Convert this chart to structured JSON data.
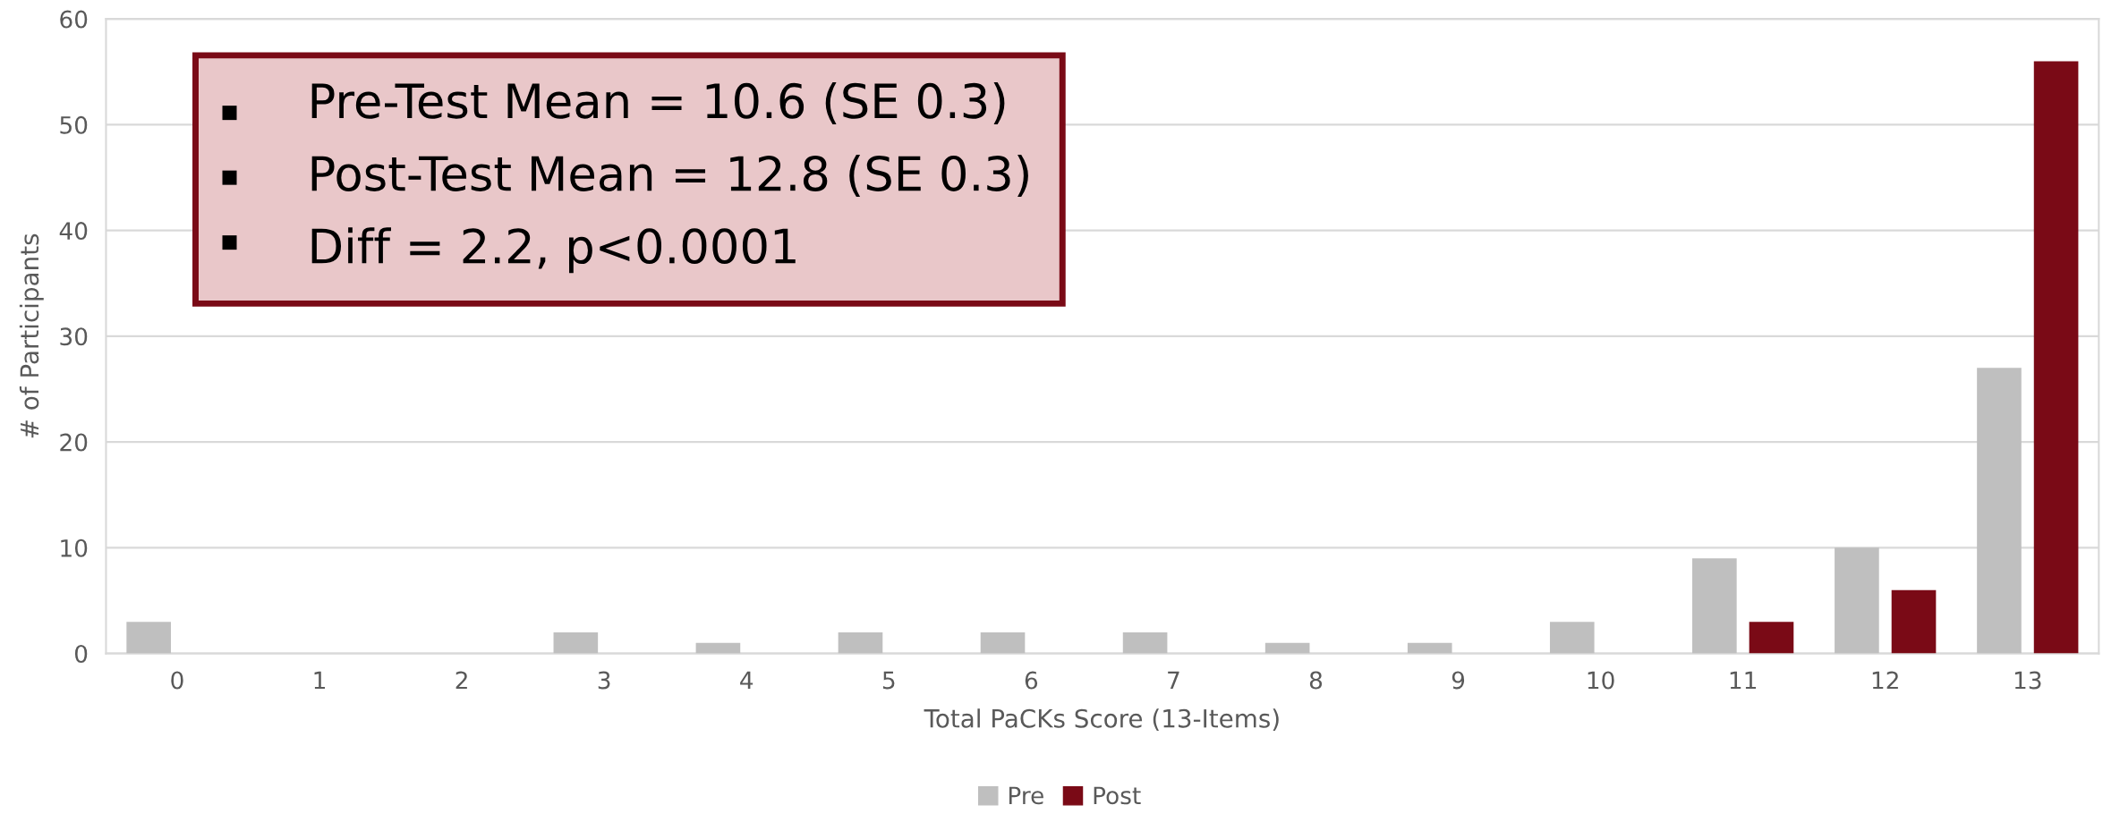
{
  "chart_data": {
    "type": "bar",
    "xlabel": "Total PaCKs Score (13-Items)",
    "ylabel": "# of Participants",
    "categories": [
      "0",
      "1",
      "2",
      "3",
      "4",
      "5",
      "6",
      "7",
      "8",
      "9",
      "10",
      "11",
      "12",
      "13"
    ],
    "series": [
      {
        "name": "Pre",
        "color": "#bfbfbf",
        "values": [
          3,
          0,
          0,
          2,
          1,
          2,
          2,
          2,
          1,
          1,
          3,
          9,
          10,
          27
        ]
      },
      {
        "name": "Post",
        "color": "#7a0a16",
        "values": [
          0,
          0,
          0,
          0,
          0,
          0,
          0,
          0,
          0,
          0,
          0,
          3,
          6,
          56
        ]
      }
    ],
    "ylim": [
      0,
      60
    ],
    "yticks": [
      0,
      10,
      20,
      30,
      40,
      50,
      60
    ],
    "grid": "y",
    "legend": "bottom",
    "annotations": [
      "Pre-Test Mean = 10.6 (SE 0.3)",
      "Post-Test Mean = 12.8 (SE 0.3)",
      "Diff = 2.2, p<0.0001"
    ]
  }
}
